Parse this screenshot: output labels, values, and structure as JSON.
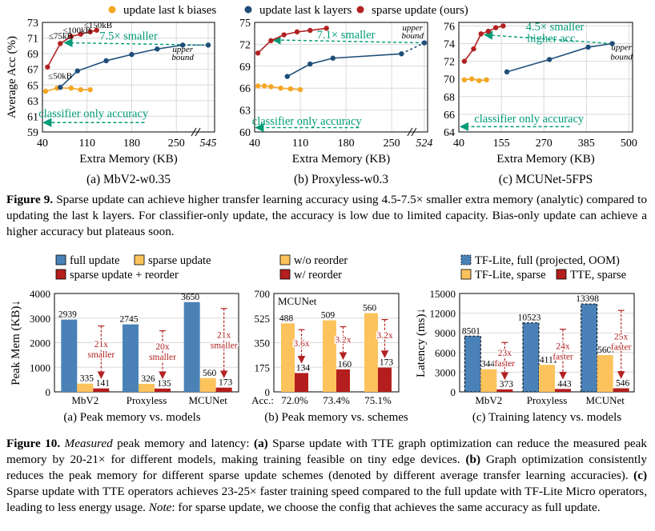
{
  "figure9": {
    "legend": [
      "update last k biases",
      "update last k layers",
      "sparse update (ours)"
    ],
    "legend_colors": [
      "#f5a623",
      "#1f4e79",
      "#b22222"
    ],
    "caption": {
      "label": "Figure 9.",
      "text": " Sparse update can achieve higher transfer learning accuracy using 4.5-7.5× smaller extra memory (analytic) compared to updating the last k layers. For classifier-only update, the accuracy is low due to limited capacity. Bias-only update can achieve a higher accuracy but plateaus soon."
    }
  },
  "figure10": {
    "caption": {
      "italic": "Measured",
      "intro": " peak memory and latency: ",
      "a_label": "(a)",
      "a_text": " Sparse update with TTE graph optimization can reduce the measured peak memory by 20-21× for different models, making training feasible on tiny edge devices. ",
      "b_label": "(b)",
      "b_text": " Graph optimization consistently reduces the peak memory for different sparse update schemes (denoted by different average transfer learning accuracies). ",
      "c_label": "(c)",
      "c_text": " Sparse update with TTE operators achieves 23-25× faster training speed compared to the full update with TF-Lite Micro operators, leading to less energy usage. ",
      "note_label": "Note",
      "note_text": ": for sparse update, we choose the config that achieves the same accuracy as full update.",
      "label": "Figure 10."
    }
  },
  "chart_data": [
    {
      "id": "fig9a",
      "type": "line",
      "subtitle": "(a)  MbV2-w0.35",
      "xlabel": "Extra Memory (KB)",
      "ylabel": "Average Acc (%)",
      "xticks": [
        "40",
        "110",
        "180",
        "250",
        "545"
      ],
      "xtick_values": [
        40,
        110,
        180,
        250,
        300
      ],
      "yticks": [
        59,
        61,
        63,
        65,
        67,
        69,
        71,
        73
      ],
      "ylim": [
        59,
        73
      ],
      "xlim": [
        40,
        310
      ],
      "axis_break": true,
      "series": [
        {
          "color": "#f5a623",
          "marker": "circle",
          "x": [
            45,
            63,
            85,
            100,
            115
          ],
          "y": [
            64.2,
            64.6,
            64.6,
            64.4,
            64.4
          ]
        },
        {
          "color": "#1f4e79",
          "marker": "circle",
          "x": [
            68,
            95,
            140,
            180,
            220,
            260
          ],
          "y": [
            64.7,
            66.8,
            68.1,
            68.9,
            69.6,
            70.1
          ],
          "dashed_to": [
            300,
            70.1
          ]
        },
        {
          "color": "#b22222",
          "marker": "circle",
          "x": [
            48,
            68,
            85,
            100,
            115,
            125
          ],
          "y": [
            67.3,
            70.3,
            71.2,
            71.5,
            71.8,
            72.0
          ]
        }
      ],
      "annotations": [
        {
          "text": "≤50kB",
          "x": 49,
          "y": 65.8
        },
        {
          "text": "≤75kB",
          "x": 50,
          "y": 70.9
        },
        {
          "text": "≤100kB",
          "x": 72,
          "y": 71.6
        },
        {
          "text": "≤150kB",
          "x": 105,
          "y": 72.3
        },
        {
          "text": "upper",
          "x": 260,
          "y": 69.2
        },
        {
          "text": "bound",
          "x": 260,
          "y": 68.2
        },
        {
          "text": "7.5× smaller",
          "x": 175,
          "y": 70.8,
          "color": "#009b77"
        },
        {
          "text": "classifier only accuracy",
          "x": 120,
          "y": 60.9,
          "color": "#009b77"
        }
      ],
      "arrows": [
        {
          "x1": 300,
          "y1": 70.1,
          "x2": 75,
          "y2": 70.4
        },
        {
          "x1": 200,
          "y1": 60.2,
          "x2": 42,
          "y2": 60.2
        }
      ]
    },
    {
      "id": "fig9b",
      "type": "line",
      "subtitle": "(b)  Proxyless-w0.3",
      "xlabel": "Extra Memory (KB)",
      "ylabel": "",
      "xticks": [
        "40",
        "110",
        "180",
        "250",
        "524"
      ],
      "xtick_values": [
        40,
        110,
        180,
        250,
        300
      ],
      "yticks": [
        60,
        63,
        66,
        69,
        72,
        75
      ],
      "ylim": [
        60,
        75
      ],
      "xlim": [
        40,
        305
      ],
      "axis_break": true,
      "series": [
        {
          "color": "#f5a623",
          "marker": "circle",
          "x": [
            45,
            55,
            65,
            80,
            95,
            110
          ],
          "y": [
            66.3,
            66.3,
            66.2,
            66.0,
            65.9,
            65.8
          ]
        },
        {
          "color": "#1f4e79",
          "marker": "circle",
          "x": [
            90,
            125,
            160,
            265
          ],
          "y": [
            67.6,
            69.3,
            70.1,
            70.7
          ],
          "dashed_to": [
            300,
            72.2
          ]
        },
        {
          "color": "#b22222",
          "marker": "circle",
          "x": [
            45,
            65,
            85,
            105,
            125,
            150
          ],
          "y": [
            70.8,
            72.5,
            73.3,
            73.7,
            73.9,
            74.2
          ]
        }
      ],
      "annotations": [
        {
          "text": "upper",
          "x": 282,
          "y": 73.9
        },
        {
          "text": "bound",
          "x": 282,
          "y": 72.8
        },
        {
          "text": "7.1× smaller",
          "x": 180,
          "y": 72.8,
          "color": "#009b77"
        },
        {
          "text": "classifier only accuracy",
          "x": 120,
          "y": 61.0,
          "color": "#009b77"
        }
      ],
      "arrows": [
        {
          "x1": 300,
          "y1": 72.2,
          "x2": 68,
          "y2": 72.6
        },
        {
          "x1": 200,
          "y1": 60.6,
          "x2": 42,
          "y2": 60.6
        }
      ]
    },
    {
      "id": "fig9c",
      "type": "line",
      "subtitle": "(c)  MCUNet-5FPS",
      "xlabel": "Extra Memory (KB)",
      "ylabel": "",
      "xticks": [
        "40",
        "155",
        "270",
        "385",
        "500"
      ],
      "xtick_values": [
        40,
        155,
        270,
        385,
        500
      ],
      "yticks": [
        64,
        66,
        68,
        70,
        72,
        74,
        76
      ],
      "ylim": [
        64,
        76.4
      ],
      "xlim": [
        40,
        510
      ],
      "axis_break": false,
      "series": [
        {
          "color": "#f5a623",
          "marker": "circle",
          "x": [
            55,
            75,
            95,
            115
          ],
          "y": [
            69.9,
            70.0,
            69.8,
            69.9
          ]
        },
        {
          "color": "#1f4e79",
          "marker": "circle",
          "x": [
            170,
            285,
            390,
            455
          ],
          "y": [
            70.8,
            72.2,
            73.6,
            74.0
          ]
        },
        {
          "color": "#b22222",
          "marker": "circle",
          "x": [
            55,
            80,
            100,
            120,
            140,
            160
          ],
          "y": [
            72.0,
            73.4,
            75.1,
            75.4,
            75.8,
            76.0
          ]
        }
      ],
      "annotations": [
        {
          "text": "upper",
          "x": 480,
          "y": 73.3
        },
        {
          "text": "bound",
          "x": 480,
          "y": 72.2
        },
        {
          "text": "4.5× smaller",
          "x": 300,
          "y": 75.5,
          "color": "#009b77"
        },
        {
          "text": "higher acc",
          "x": 290,
          "y": 74.2,
          "color": "#009b77"
        },
        {
          "text": "classifier only accuracy",
          "x": 230,
          "y": 65.1,
          "color": "#009b77"
        }
      ],
      "arrows": [
        {
          "x1": 455,
          "y1": 74.0,
          "x2": 110,
          "y2": 75.0
        },
        {
          "x1": 340,
          "y1": 64.6,
          "x2": 45,
          "y2": 64.6
        }
      ]
    },
    {
      "id": "fig10a",
      "type": "bar",
      "subtitle": "(a) Peak memory vs. models",
      "ylabel": "Peak Mem (KB)↓",
      "yticks": [
        0,
        1000,
        2000,
        3000,
        4000
      ],
      "ylim": [
        0,
        4000
      ],
      "categories": [
        "MbV2",
        "Proxyless",
        "MCUNet"
      ],
      "series": [
        {
          "name": "full update",
          "color": "#4a82b8",
          "values": [
            2939,
            2745,
            3650
          ]
        },
        {
          "name": "sparse update",
          "color": "#fcc35c",
          "values": [
            335,
            326,
            560
          ]
        },
        {
          "name": "sparse update + reorder",
          "color": "#b51e1e",
          "values": [
            141,
            135,
            173
          ]
        }
      ],
      "reductions": [
        "21x\nsmaller",
        "20x\nsmaller",
        "21x\nsmaller"
      ]
    },
    {
      "id": "fig10b",
      "type": "bar",
      "subtitle": "(b) Peak memory vs. schemes",
      "ylabel": "",
      "yticks": [
        0,
        175,
        350,
        525,
        700
      ],
      "ylim": [
        0,
        700
      ],
      "title": "MCUNet",
      "categories": [
        "72.0%",
        "73.4%",
        "75.1%"
      ],
      "category_prefix": "Acc.:",
      "series": [
        {
          "name": "w/o reorder",
          "color": "#fcc35c",
          "values": [
            488,
            509,
            560
          ]
        },
        {
          "name": "w/ reorder",
          "color": "#b51e1e",
          "values": [
            134,
            160,
            173
          ]
        }
      ],
      "reductions": [
        "3.6x",
        "3.2x",
        "3.2x"
      ]
    },
    {
      "id": "fig10c",
      "type": "bar",
      "subtitle": "(c) Training latency vs. models",
      "ylabel": "Latency (ms)↓",
      "yticks": [
        0,
        3000,
        6000,
        9000,
        12000,
        15000
      ],
      "ylim": [
        0,
        15000
      ],
      "categories": [
        "MbV2",
        "Proxyless",
        "MCUNet"
      ],
      "series": [
        {
          "name": "TF-Lite, full (projected, OOM)",
          "color": "#4a82b8",
          "values": [
            8501,
            10523,
            13398
          ],
          "dashed": true
        },
        {
          "name": "TF-Lite, sparse",
          "color": "#fcc35c",
          "values": [
            3448,
            4111,
            5607
          ]
        },
        {
          "name": "TTE, sparse",
          "color": "#b51e1e",
          "values": [
            373,
            443,
            546
          ]
        }
      ],
      "reductions": [
        "23x\nfaster",
        "24x\nfaster",
        "25x\nfaster"
      ]
    }
  ]
}
